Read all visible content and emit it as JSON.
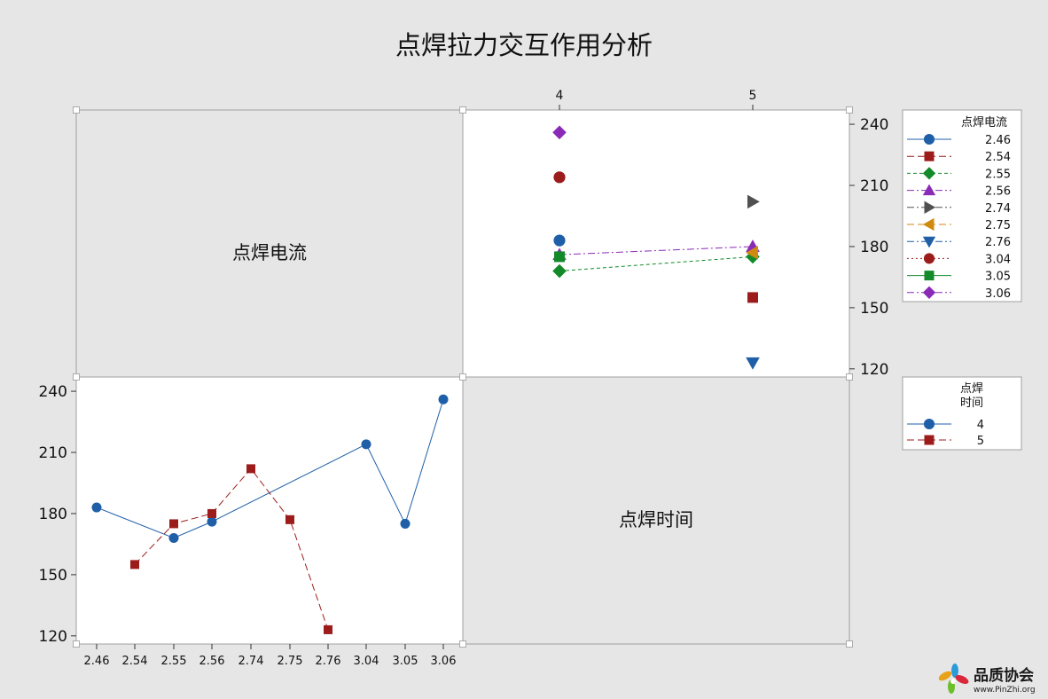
{
  "chart_data": {
    "type": "line",
    "title": "点焊拉力交互作用分析",
    "factors": [
      {
        "name": "点焊电流",
        "levels": [
          "2.46",
          "2.54",
          "2.55",
          "2.56",
          "2.74",
          "2.75",
          "2.76",
          "3.04",
          "3.05",
          "3.06"
        ]
      },
      {
        "name": "点焊时间",
        "levels": [
          "4",
          "5"
        ]
      }
    ],
    "y_axis": {
      "ticks": [
        120,
        150,
        180,
        210,
        240
      ],
      "range": [
        116,
        247
      ]
    },
    "top_right_panel": {
      "x_categories": [
        "4",
        "5"
      ],
      "legend_title": "点焊电流",
      "series": [
        {
          "name": "2.46",
          "color": "#1f5fa8",
          "marker": "circle",
          "dash": "solid",
          "values": [
            183,
            null
          ]
        },
        {
          "name": "2.54",
          "color": "#9c1c1c",
          "marker": "square",
          "dash": "longdash",
          "values": [
            null,
            155
          ]
        },
        {
          "name": "2.55",
          "color": "#138a2a",
          "marker": "diamond",
          "dash": "dash",
          "values": [
            168,
            175
          ]
        },
        {
          "name": "2.56",
          "color": "#8a2bb8",
          "marker": "triangle-up",
          "dash": "dashdot",
          "values": [
            176,
            180
          ]
        },
        {
          "name": "2.74",
          "color": "#505050",
          "marker": "triangle-right",
          "dash": "dashdot",
          "values": [
            null,
            202
          ]
        },
        {
          "name": "2.75",
          "color": "#d08a10",
          "marker": "triangle-left",
          "dash": "longdash",
          "values": [
            null,
            177
          ]
        },
        {
          "name": "2.76",
          "color": "#1f5fa8",
          "marker": "triangle-down",
          "dash": "dashdot",
          "values": [
            null,
            123
          ]
        },
        {
          "name": "3.04",
          "color": "#9c1c1c",
          "marker": "circle",
          "dash": "dot",
          "values": [
            214,
            null
          ]
        },
        {
          "name": "3.05",
          "color": "#138a2a",
          "marker": "square",
          "dash": "solid",
          "values": [
            175,
            null
          ]
        },
        {
          "name": "3.06",
          "color": "#8a2bb8",
          "marker": "diamond",
          "dash": "dashdot",
          "values": [
            236,
            null
          ]
        }
      ]
    },
    "bottom_left_panel": {
      "x_categories": [
        "2.46",
        "2.54",
        "2.55",
        "2.56",
        "2.74",
        "2.75",
        "2.76",
        "3.04",
        "3.05",
        "3.06"
      ],
      "legend_title_lines": [
        "点焊",
        "时间"
      ],
      "series": [
        {
          "name": "4",
          "color": "#1f5fa8",
          "marker": "circle",
          "dash": "solid",
          "values": [
            183,
            null,
            168,
            176,
            null,
            null,
            null,
            214,
            175,
            236
          ]
        },
        {
          "name": "5",
          "color": "#9c1c1c",
          "marker": "square",
          "dash": "longdash",
          "values": [
            null,
            155,
            175,
            180,
            202,
            177,
            123,
            null,
            null,
            null
          ]
        }
      ]
    }
  },
  "watermark": {
    "brand": "品质协会",
    "url": "www.PinZhi.org"
  }
}
